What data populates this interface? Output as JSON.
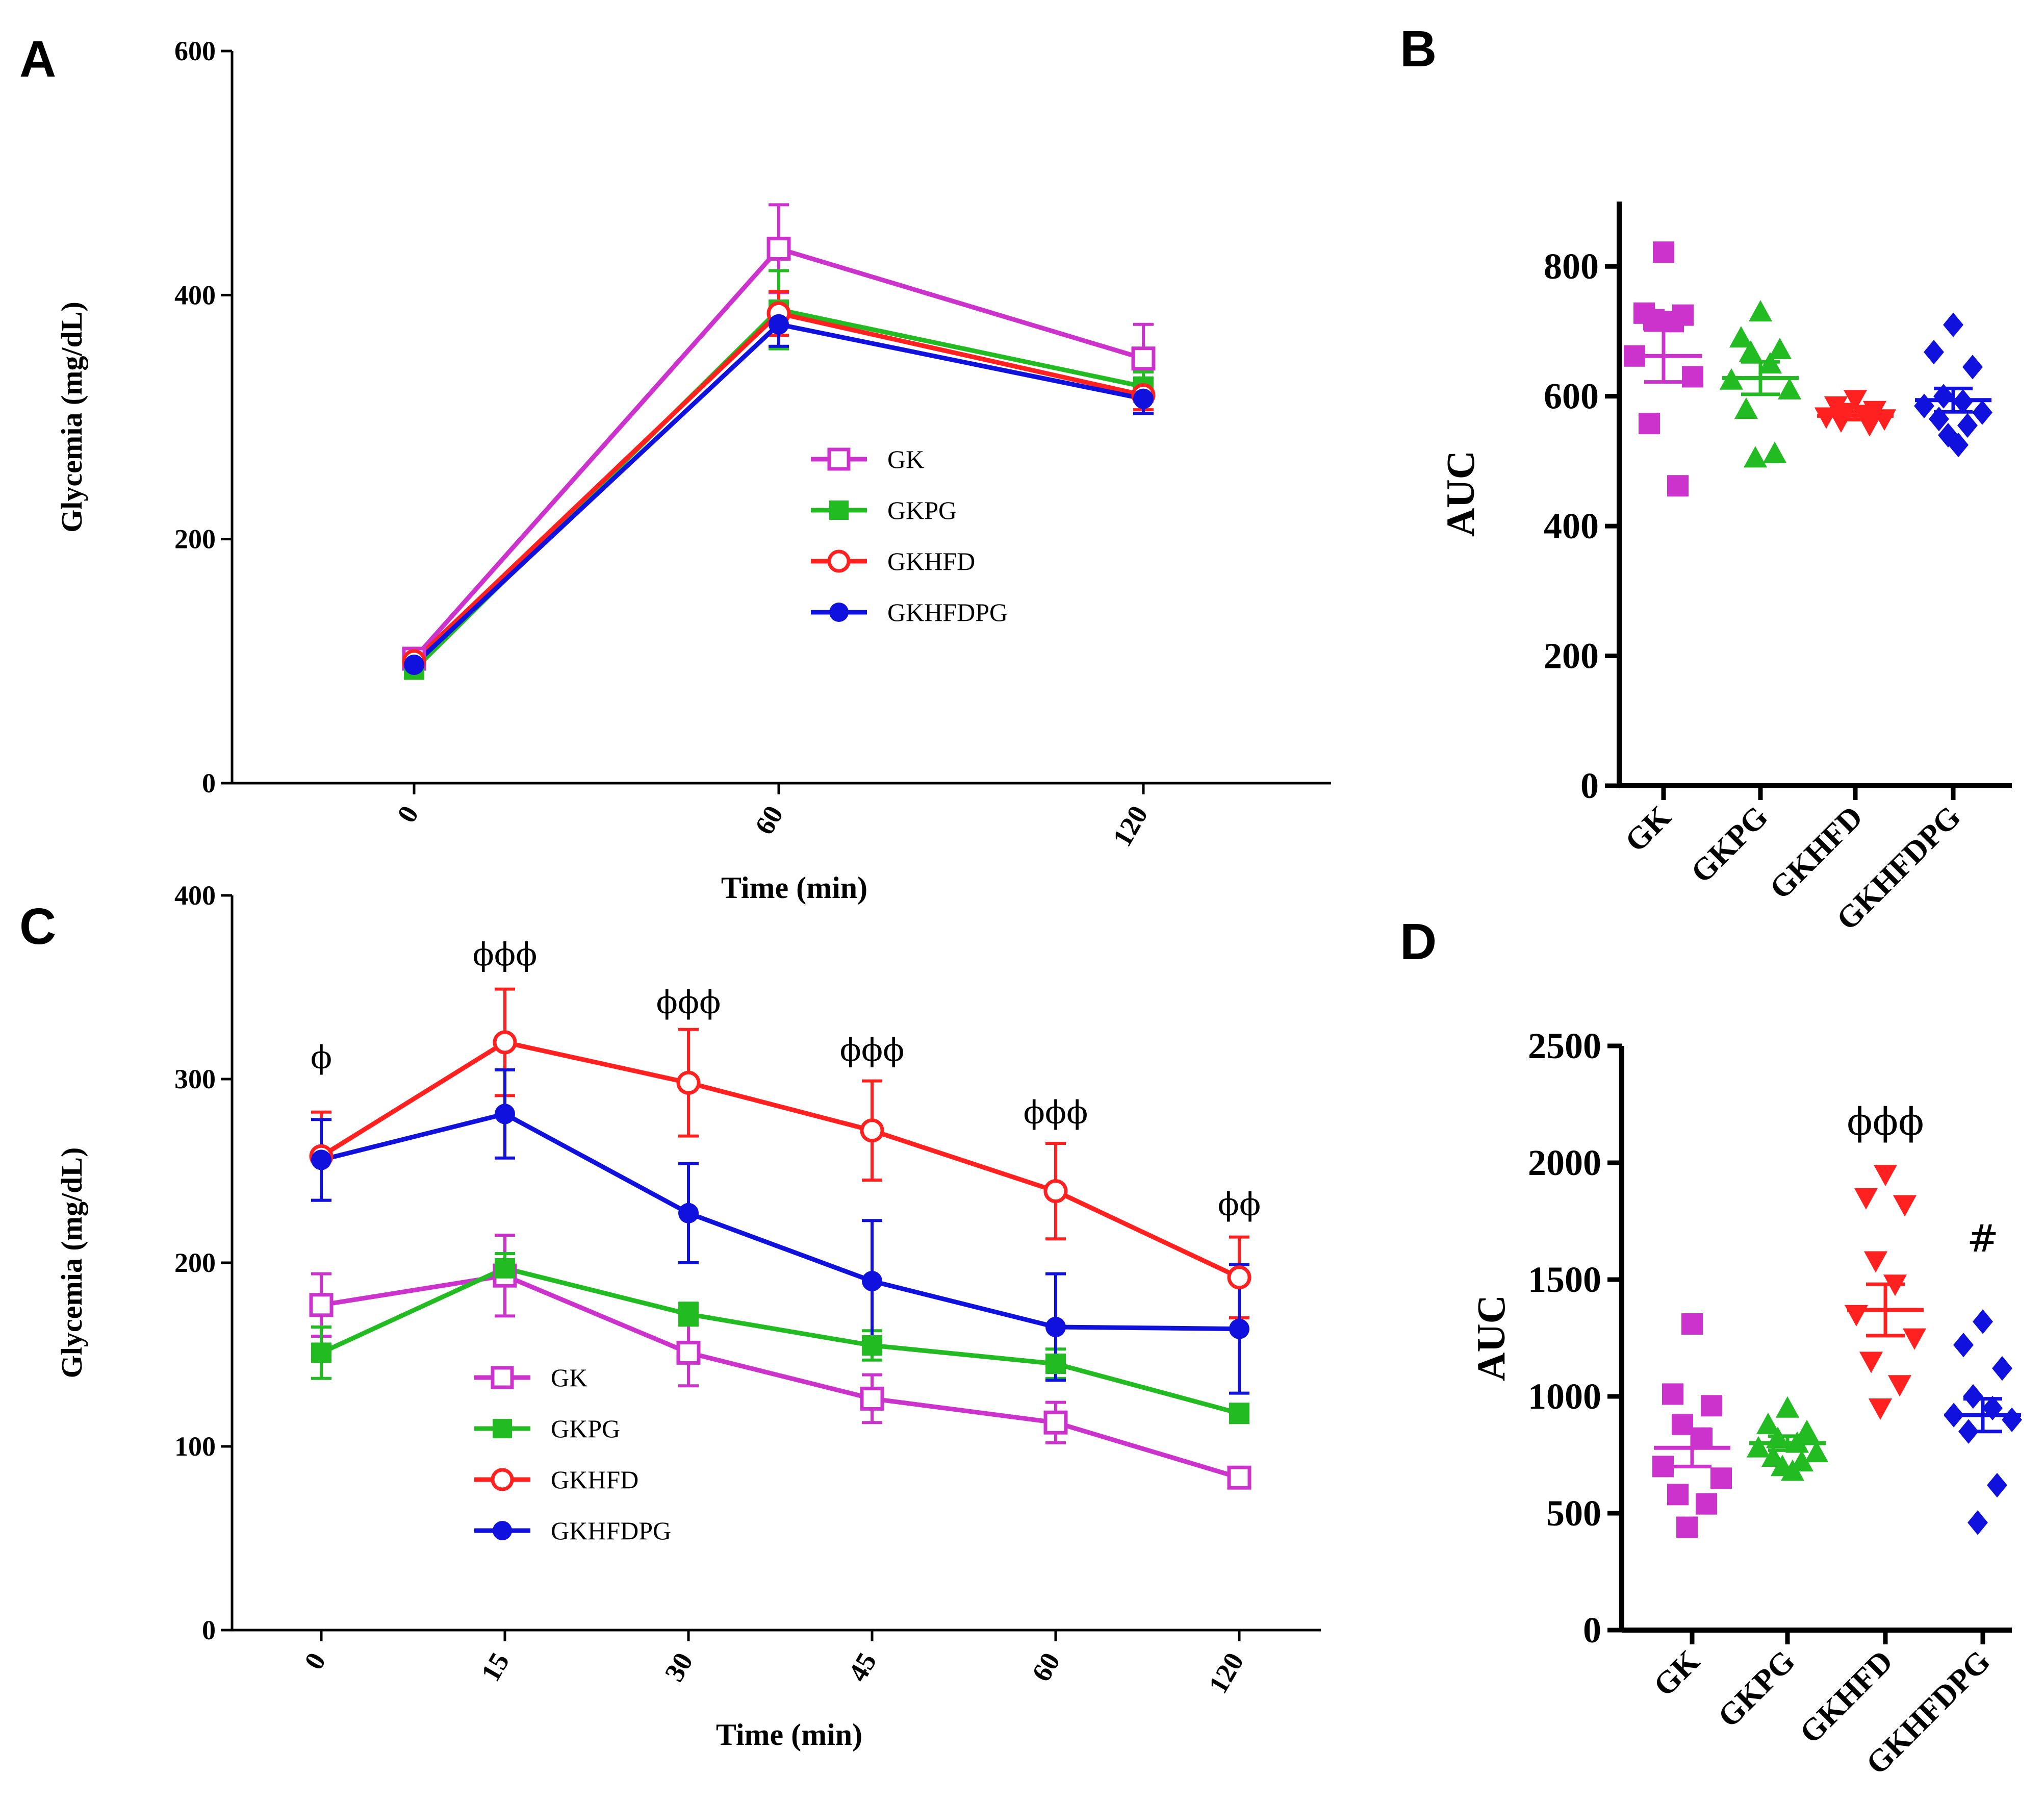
{
  "panels": [
    "A",
    "B",
    "C",
    "D"
  ],
  "chart_data": [
    {
      "id": "A",
      "type": "line",
      "xlabel": "Time (min)",
      "ylabel": "Glycemia (mg/dL)",
      "ylim": [
        0,
        600
      ],
      "yticks": [
        0,
        200,
        400,
        600
      ],
      "categories": [
        "0",
        "60",
        "120"
      ],
      "series": [
        {
          "name": "GK",
          "color": "#cc33cc",
          "marker": "square-open",
          "values": [
            102,
            438,
            348
          ],
          "err": [
            6,
            36,
            28
          ]
        },
        {
          "name": "GKPG",
          "color": "#22bb22",
          "marker": "square-filled",
          "values": [
            93,
            388,
            325
          ],
          "err": [
            5,
            32,
            12
          ]
        },
        {
          "name": "GKHFD",
          "color": "#ff2020",
          "marker": "circle-open",
          "values": [
            100,
            385,
            318
          ],
          "err": [
            5,
            18,
            12
          ]
        },
        {
          "name": "GKHFDPG",
          "color": "#1111dd",
          "marker": "circle-filled",
          "values": [
            97,
            376,
            315
          ],
          "err": [
            5,
            18,
            12
          ]
        }
      ]
    },
    {
      "id": "B",
      "type": "scatter",
      "ylabel": "AUC",
      "ylim": [
        0,
        900
      ],
      "yticks": [
        0,
        200,
        400,
        600,
        800
      ],
      "categories": [
        "GK",
        "GKPG",
        "GKHFD",
        "GKHFDPG"
      ],
      "groups": [
        {
          "name": "GK",
          "color": "#cc33cc",
          "marker": "square",
          "mean": 662,
          "sem": 40,
          "points": [
            822,
            728,
            725,
            718,
            715,
            662,
            630,
            558,
            462
          ]
        },
        {
          "name": "GKPG",
          "color": "#22bb22",
          "marker": "triangle-up",
          "mean": 628,
          "sem": 25,
          "points": [
            730,
            690,
            672,
            668,
            650,
            625,
            610,
            580,
            512,
            505
          ]
        },
        {
          "name": "GKHFD",
          "color": "#ff2020",
          "marker": "triangle-down",
          "mean": 570,
          "sem": 6,
          "points": [
            595,
            585,
            578,
            575,
            572,
            568,
            565,
            562,
            556
          ]
        },
        {
          "name": "GKHFDPG",
          "color": "#1111dd",
          "marker": "diamond",
          "mean": 594,
          "sem": 18,
          "points": [
            710,
            668,
            645,
            600,
            592,
            585,
            575,
            565,
            555,
            540,
            525
          ]
        }
      ]
    },
    {
      "id": "C",
      "type": "line",
      "xlabel": "Time (min)",
      "ylabel": "Glycemia (mg/dL)",
      "ylim": [
        0,
        400
      ],
      "yticks": [
        0,
        100,
        200,
        300,
        400
      ],
      "categories": [
        "0",
        "15",
        "30",
        "45",
        "60",
        "120"
      ],
      "series": [
        {
          "name": "GK",
          "color": "#cc33cc",
          "marker": "square-open",
          "values": [
            177,
            193,
            151,
            126,
            113,
            83
          ],
          "err": [
            17,
            22,
            18,
            13,
            11,
            4
          ]
        },
        {
          "name": "GKPG",
          "color": "#22bb22",
          "marker": "square-filled",
          "values": [
            151,
            197,
            172,
            155,
            145,
            118
          ],
          "err": [
            14,
            8,
            6,
            8,
            8,
            5
          ]
        },
        {
          "name": "GKHFD",
          "color": "#ff2020",
          "marker": "circle-open",
          "values": [
            258,
            320,
            298,
            272,
            239,
            192
          ],
          "err": [
            24,
            29,
            29,
            27,
            26,
            22
          ]
        },
        {
          "name": "GKHFDPG",
          "color": "#1111dd",
          "marker": "circle-filled",
          "values": [
            256,
            281,
            227,
            190,
            165,
            164
          ],
          "err": [
            22,
            24,
            27,
            33,
            29,
            35
          ]
        }
      ],
      "annotations": [
        {
          "category": "0",
          "text": "ϕ",
          "value": 306
        },
        {
          "category": "15",
          "text": "ϕϕϕ",
          "value": 362
        },
        {
          "category": "30",
          "text": "ϕϕϕ",
          "value": 336
        },
        {
          "category": "45",
          "text": "ϕϕϕ",
          "value": 310
        },
        {
          "category": "60",
          "text": "ϕϕϕ",
          "value": 276
        },
        {
          "category": "120",
          "text": "ϕϕ",
          "value": 226
        }
      ]
    },
    {
      "id": "D",
      "type": "scatter",
      "ylabel": "AUC",
      "ylim": [
        0,
        2500
      ],
      "yticks": [
        0,
        500,
        1000,
        1500,
        2000,
        2500
      ],
      "categories": [
        "GK",
        "GKPG",
        "GKHFD",
        "GKHFDPG"
      ],
      "groups": [
        {
          "name": "GK",
          "color": "#cc33cc",
          "marker": "square",
          "mean": 780,
          "sem": 80,
          "points": [
            1310,
            1010,
            960,
            880,
            820,
            700,
            650,
            580,
            540,
            440
          ]
        },
        {
          "name": "GKPG",
          "color": "#22bb22",
          "marker": "triangle-up",
          "mean": 800,
          "sem": 30,
          "points": [
            950,
            880,
            850,
            820,
            800,
            780,
            760,
            740,
            720,
            700,
            680
          ]
        },
        {
          "name": "GKHFD",
          "color": "#ff2020",
          "marker": "triangle-down",
          "mean": 1370,
          "sem": 110,
          "points": [
            1950,
            1850,
            1820,
            1580,
            1480,
            1350,
            1250,
            1150,
            1050,
            950
          ]
        },
        {
          "name": "GKHFDPG",
          "color": "#1111dd",
          "marker": "diamond",
          "mean": 920,
          "sem": 70,
          "points": [
            1320,
            1220,
            1120,
            1000,
            950,
            920,
            900,
            850,
            620,
            460
          ]
        }
      ],
      "annotations": [
        {
          "category": "GKHFD",
          "text": "ϕϕϕ",
          "value": 2120
        },
        {
          "category": "GKHFDPG",
          "text": "#",
          "value": 1620
        }
      ]
    }
  ]
}
